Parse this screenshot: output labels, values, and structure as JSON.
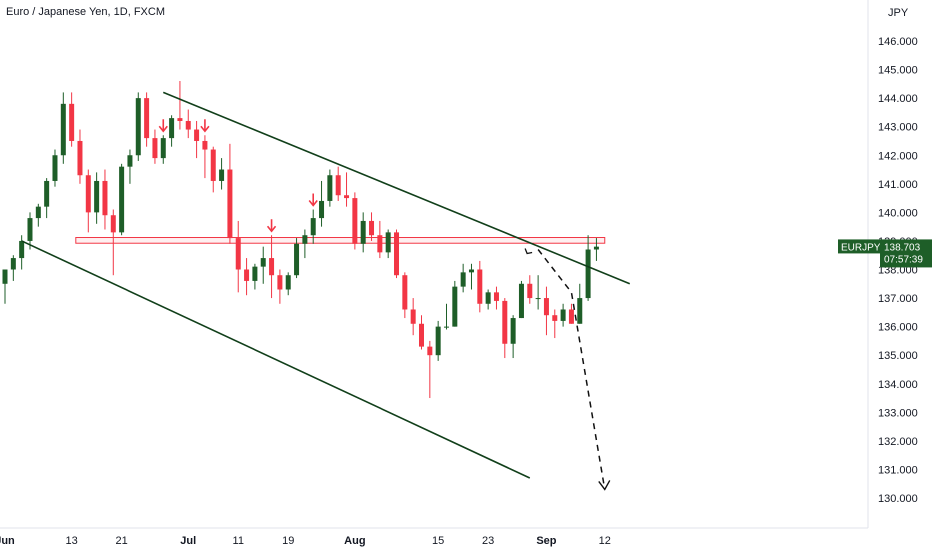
{
  "chart_data": {
    "type": "candlestick",
    "title": "Euro / Japanese Yen, 1D, FXCM",
    "currency_label": "JPY",
    "y_ticks": [
      "146.000",
      "145.000",
      "144.000",
      "143.000",
      "142.000",
      "141.000",
      "140.000",
      "139.000",
      "138.000",
      "137.000",
      "136.000",
      "135.000",
      "134.000",
      "133.000",
      "132.000",
      "131.000",
      "130.000"
    ],
    "y_tick_values": [
      146,
      145,
      144,
      143,
      142,
      141,
      140,
      139,
      138,
      137,
      136,
      135,
      134,
      133,
      132,
      131,
      130
    ],
    "x_ticks": [
      {
        "label": "Jun",
        "bar": 0,
        "bold": true
      },
      {
        "label": "13",
        "bar": 8
      },
      {
        "label": "21",
        "bar": 14
      },
      {
        "label": "Jul",
        "bar": 22,
        "bold": true
      },
      {
        "label": "11",
        "bar": 28
      },
      {
        "label": "19",
        "bar": 34
      },
      {
        "label": "Aug",
        "bar": 42,
        "bold": true
      },
      {
        "label": "15",
        "bar": 52
      },
      {
        "label": "23",
        "bar": 58
      },
      {
        "label": "Sep",
        "bar": 65,
        "bold": true
      },
      {
        "label": "12",
        "bar": 72
      }
    ],
    "ohlc": [
      [
        137.5,
        138.0,
        136.8,
        138.0
      ],
      [
        138.0,
        138.5,
        137.6,
        138.4
      ],
      [
        138.4,
        139.2,
        138.0,
        139.0
      ],
      [
        139.0,
        140.0,
        138.7,
        139.8
      ],
      [
        139.8,
        140.3,
        139.5,
        140.2
      ],
      [
        140.2,
        141.2,
        139.8,
        141.1
      ],
      [
        141.1,
        142.2,
        140.9,
        142.0
      ],
      [
        142.0,
        144.2,
        141.7,
        143.8
      ],
      [
        143.8,
        144.2,
        142.3,
        142.5
      ],
      [
        142.5,
        142.9,
        141.0,
        141.3
      ],
      [
        141.3,
        141.5,
        139.3,
        140.0
      ],
      [
        140.0,
        141.4,
        139.6,
        141.1
      ],
      [
        141.1,
        141.5,
        139.4,
        139.9
      ],
      [
        139.9,
        140.1,
        137.8,
        139.3
      ],
      [
        139.3,
        141.7,
        139.2,
        141.6
      ],
      [
        141.6,
        142.2,
        141.0,
        142.0
      ],
      [
        142.0,
        144.2,
        141.8,
        144.0
      ],
      [
        144.0,
        144.2,
        142.3,
        142.6
      ],
      [
        142.6,
        142.9,
        141.7,
        141.9
      ],
      [
        141.9,
        142.7,
        141.7,
        142.6
      ],
      [
        142.6,
        143.4,
        142.3,
        143.3
      ],
      [
        143.3,
        144.6,
        142.9,
        143.2
      ],
      [
        143.2,
        143.6,
        142.6,
        142.9
      ],
      [
        142.9,
        143.2,
        141.9,
        142.5
      ],
      [
        142.5,
        142.7,
        141.2,
        142.2
      ],
      [
        142.2,
        142.3,
        140.7,
        141.1
      ],
      [
        141.1,
        141.9,
        140.8,
        141.5
      ],
      [
        141.5,
        142.4,
        138.9,
        139.1
      ],
      [
        139.1,
        139.7,
        137.2,
        138.0
      ],
      [
        138.0,
        138.4,
        137.1,
        137.6
      ],
      [
        137.6,
        138.2,
        137.3,
        138.1
      ],
      [
        138.1,
        138.8,
        137.5,
        138.4
      ],
      [
        138.4,
        139.2,
        137.0,
        137.8
      ],
      [
        137.8,
        138.0,
        136.8,
        137.3
      ],
      [
        137.3,
        137.9,
        137.1,
        137.8
      ],
      [
        137.8,
        139.1,
        137.7,
        138.9
      ],
      [
        138.9,
        139.4,
        138.4,
        139.2
      ],
      [
        139.2,
        140.1,
        138.9,
        139.8
      ],
      [
        139.8,
        141.1,
        139.5,
        140.4
      ],
      [
        140.4,
        141.5,
        140.2,
        141.3
      ],
      [
        141.3,
        141.6,
        140.4,
        140.6
      ],
      [
        140.6,
        141.4,
        140.2,
        140.5
      ],
      [
        140.5,
        140.7,
        138.7,
        138.9
      ],
      [
        138.9,
        140.0,
        138.6,
        139.7
      ],
      [
        139.7,
        140.0,
        139.0,
        139.2
      ]
    ],
    "ohlc_later": [
      [
        139.2,
        139.7,
        138.4,
        138.6
      ],
      [
        138.6,
        139.4,
        138.4,
        139.3
      ],
      [
        139.3,
        139.4,
        137.7,
        137.8
      ],
      [
        137.8,
        137.9,
        136.3,
        136.6
      ],
      [
        136.6,
        137.0,
        135.7,
        136.1
      ]
    ],
    "ohlc_aug": [
      [
        136.1,
        136.4,
        135.2,
        135.3
      ],
      [
        135.3,
        135.5,
        133.5,
        135.0
      ],
      [
        135.0,
        136.2,
        134.8,
        136.0
      ],
      [
        136.0,
        136.8,
        135.9,
        136.0
      ],
      [
        136.0,
        137.6,
        136.0,
        137.4
      ],
      [
        137.4,
        138.2,
        137.2,
        137.9
      ],
      [
        137.9,
        138.2,
        137.3,
        138.0
      ],
      [
        138.0,
        138.3,
        136.5,
        136.8
      ],
      [
        136.8,
        137.3,
        136.6,
        137.2
      ],
      [
        137.2,
        137.4,
        136.6,
        136.9
      ],
      [
        136.9,
        137.0,
        134.9,
        135.4
      ],
      [
        135.4,
        136.4,
        134.9,
        136.3
      ],
      [
        136.3,
        137.6,
        136.3,
        137.5
      ],
      [
        137.5,
        137.8,
        136.8,
        137.0
      ],
      [
        137.0,
        137.8,
        136.6,
        137.0
      ],
      [
        137.0,
        137.4,
        135.7,
        136.4
      ],
      [
        136.4,
        136.6,
        135.6,
        136.2
      ],
      [
        136.2,
        136.8,
        136.0,
        136.6
      ],
      [
        136.6,
        136.8,
        136.1,
        136.1
      ],
      [
        136.1,
        137.5,
        136.1,
        137.0
      ],
      [
        137.0,
        139.2,
        136.9,
        138.7
      ],
      [
        138.7,
        139.1,
        138.3,
        138.8
      ]
    ],
    "last_price": {
      "symbol": "EURJPY",
      "price": "138.703",
      "countdown": "07:57:39"
    },
    "resistance_zone": {
      "from_bar": 8.5,
      "to_bar": 72,
      "low": 138.92,
      "high": 139.12
    },
    "trendlines": [
      {
        "from": [
          19,
          144.2
        ],
        "to": [
          75,
          137.5
        ]
      },
      {
        "from": [
          2,
          139.0
        ],
        "to": [
          63,
          130.7
        ]
      }
    ],
    "projection": [
      [
        64,
        138.7
      ],
      [
        68,
        137.2
      ],
      [
        72,
        130.3
      ]
    ],
    "top_markers_bars": [
      19,
      24,
      32,
      37
    ],
    "colors": {
      "up": "#1e5e28",
      "down": "#f23645",
      "trend": "#113f1a",
      "zone": "#f23645",
      "axis_text": "#131722",
      "price_badge": "#1e5e28"
    }
  }
}
